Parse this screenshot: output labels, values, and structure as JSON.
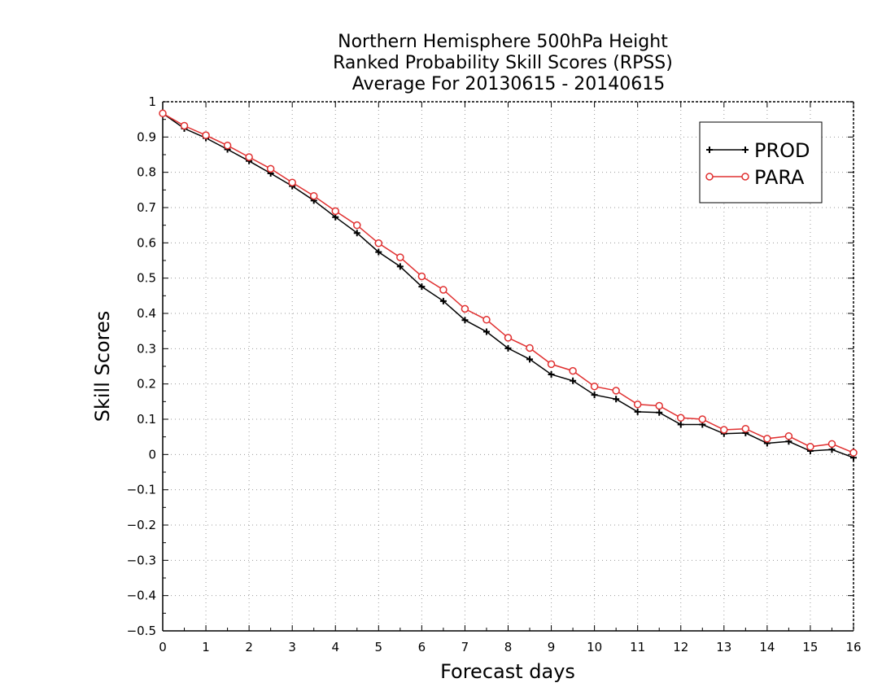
{
  "chart_data": {
    "type": "line",
    "title_lines": [
      "Northern Hemisphere 500hPa Height",
      "Ranked Probability Skill Scores (RPSS)",
      "Average For 20130615 - 20140615"
    ],
    "xlabel": "Forecast days",
    "ylabel": "Skill Scores",
    "xlim": [
      0,
      16
    ],
    "ylim": [
      -0.5,
      1
    ],
    "x_ticks": [
      0,
      1,
      2,
      3,
      4,
      5,
      6,
      7,
      8,
      9,
      10,
      11,
      12,
      13,
      14,
      15,
      16
    ],
    "x_tick_labels": [
      "0",
      "1",
      "2",
      "3",
      "4",
      "5",
      "6",
      "7",
      "8",
      "9",
      "10",
      "11",
      "12",
      "13",
      "14",
      "15",
      "16"
    ],
    "y_ticks": [
      1,
      0.9,
      0.8,
      0.7,
      0.6,
      0.5,
      0.4,
      0.3,
      0.2,
      0.1,
      0,
      -0.1,
      -0.2,
      -0.3,
      -0.4,
      -0.5
    ],
    "y_tick_labels": [
      "1",
      "0.9",
      "0.8",
      "0.7",
      "0.6",
      "0.5",
      "0.4",
      "0.3",
      "0.2",
      "0.1",
      "0",
      "−0.1",
      "−0.2",
      "−0.3",
      "−0.4",
      "−0.5"
    ],
    "grid": true,
    "legend_position": "top-right",
    "x": [
      0,
      0.5,
      1,
      1.5,
      2,
      2.5,
      3,
      3.5,
      4,
      4.5,
      5,
      5.5,
      6,
      6.5,
      7,
      7.5,
      8,
      8.5,
      9,
      9.5,
      10,
      10.5,
      11,
      11.5,
      12,
      12.5,
      13,
      13.5,
      14,
      14.5,
      15,
      15.5,
      16
    ],
    "series": [
      {
        "name": "PROD",
        "color": "#000000",
        "marker": "plus",
        "values": [
          0.967,
          0.924,
          0.897,
          0.865,
          0.832,
          0.797,
          0.761,
          0.72,
          0.673,
          0.628,
          0.574,
          0.533,
          0.476,
          0.435,
          0.381,
          0.348,
          0.301,
          0.27,
          0.227,
          0.209,
          0.169,
          0.157,
          0.121,
          0.119,
          0.085,
          0.085,
          0.059,
          0.061,
          0.032,
          0.037,
          0.01,
          0.014,
          -0.009
        ]
      },
      {
        "name": "PARA",
        "color": "#e03030",
        "marker": "circle",
        "values": [
          0.967,
          0.932,
          0.905,
          0.876,
          0.843,
          0.81,
          0.771,
          0.733,
          0.69,
          0.65,
          0.599,
          0.559,
          0.505,
          0.467,
          0.413,
          0.382,
          0.331,
          0.302,
          0.256,
          0.237,
          0.193,
          0.181,
          0.142,
          0.138,
          0.104,
          0.1,
          0.07,
          0.073,
          0.045,
          0.052,
          0.022,
          0.03,
          0.005
        ]
      }
    ]
  }
}
